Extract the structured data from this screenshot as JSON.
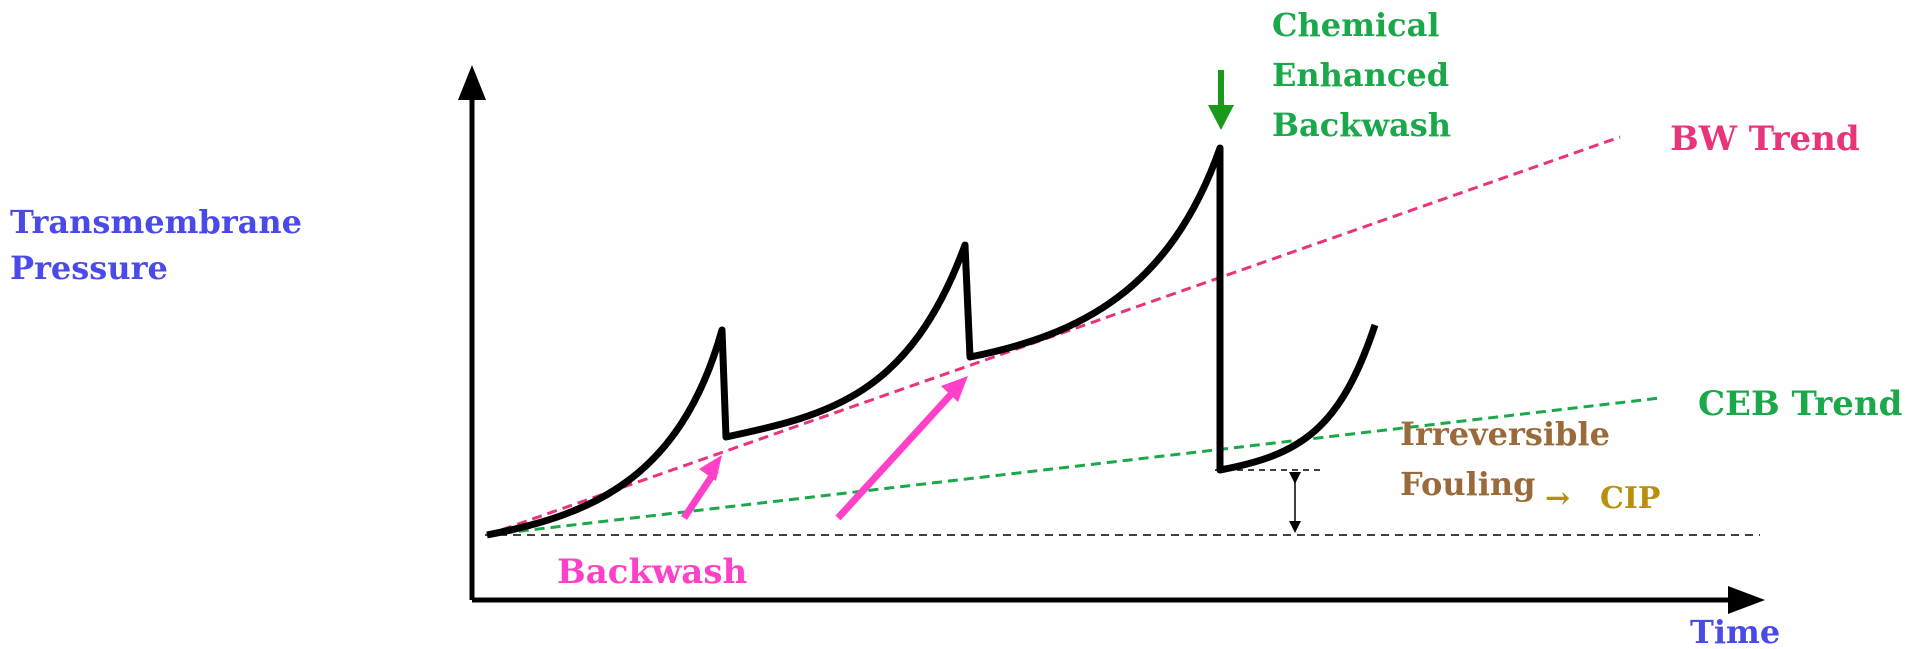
{
  "labels": {
    "y_axis_line1": "Transmembrane",
    "y_axis_line2": "Pressure",
    "x_axis": "Time",
    "ceb_line1": "Chemical",
    "ceb_line2": "Enhanced",
    "ceb_line3": "Backwash",
    "bw_trend": "BW Trend",
    "ceb_trend": "CEB Trend",
    "irreversible_line1": "Irreversible",
    "irreversible_line2": "Fouling",
    "cip": "CIP",
    "cip_arrow": "→",
    "backwash": "Backwash"
  },
  "colors": {
    "axis": "#000000",
    "curve": "#000000",
    "bw_trend": "#e8347a",
    "ceb_trend": "#1aa84a",
    "ceb_arrow": "#1a9a1a",
    "axis_label": "#4a4ae8",
    "backwash": "#ff40c8",
    "fouling": "#9a6a3a",
    "cip": "#b8900a"
  }
}
